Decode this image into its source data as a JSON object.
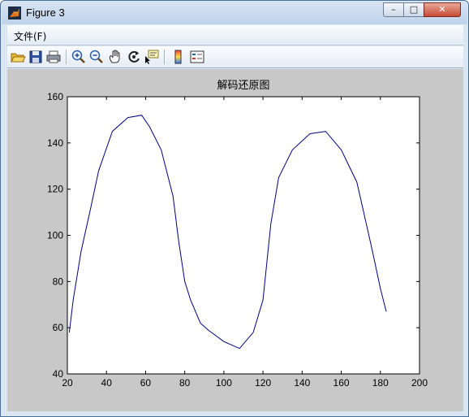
{
  "window": {
    "title": "Figure 3"
  },
  "controls": {
    "minimize": "–",
    "maximize": "□",
    "close": "✕"
  },
  "menu": {
    "items": [
      "文件(F)"
    ]
  },
  "toolbar": {
    "buttons": [
      "open-folder-icon",
      "save-icon",
      "print-icon",
      "zoom-in-icon",
      "zoom-out-icon",
      "pan-hand-icon",
      "rotate-3d-icon",
      "data-cursor-icon",
      "colorbar-icon",
      "legend-icon"
    ]
  },
  "colors": {
    "line": "#000080",
    "figure_bg": "#c8c8c8",
    "axes_bg": "#ffffff"
  },
  "chart_data": {
    "type": "line",
    "title": "解码还原图",
    "xlabel": "",
    "ylabel": "",
    "xlim": [
      20,
      200
    ],
    "ylim": [
      40,
      160
    ],
    "xticks": [
      20,
      40,
      60,
      80,
      100,
      120,
      140,
      160,
      180,
      200
    ],
    "yticks": [
      40,
      60,
      80,
      100,
      120,
      140,
      160
    ],
    "grid": false,
    "series": [
      {
        "x": [
          21,
          23,
          27,
          32,
          36,
          43,
          51,
          58,
          62,
          68,
          74,
          77,
          80,
          83,
          88,
          92,
          100,
          108,
          115,
          120,
          124,
          128,
          135,
          144,
          152,
          160,
          168,
          172,
          176,
          180,
          183
        ],
        "y": [
          58,
          72,
          93,
          112,
          128,
          145,
          151,
          152,
          147,
          137,
          117,
          97,
          80,
          72,
          62,
          59,
          54,
          51,
          58,
          72,
          105,
          125,
          137,
          144,
          145,
          137,
          123,
          108,
          93,
          77,
          67
        ]
      }
    ]
  }
}
